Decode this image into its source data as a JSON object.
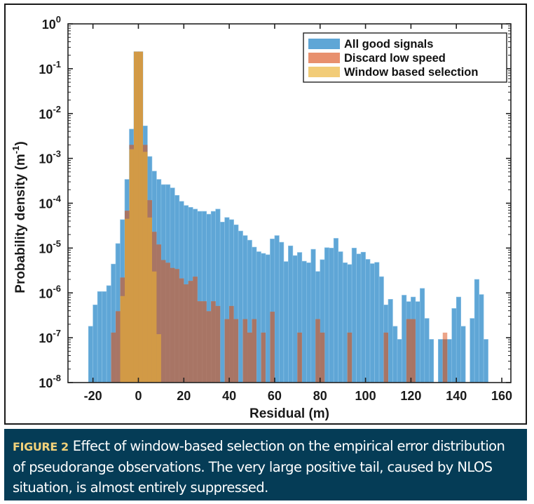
{
  "chart_data": {
    "type": "bar",
    "subtype": "overlaid-histogram",
    "title": "",
    "xlabel": "Residual (m)",
    "ylabel_main": "Probability density (m",
    "ylabel_sup": "-1",
    "ylabel_close": ")",
    "xlim": [
      -31,
      164
    ],
    "ylim": [
      1e-08,
      1
    ],
    "yscale": "log",
    "bin_width": 2,
    "x_ticks": [
      -20,
      0,
      20,
      40,
      60,
      80,
      100,
      120,
      140,
      160
    ],
    "x_tick_labels": [
      "-20",
      "0",
      "20",
      "40",
      "60",
      "80",
      "100",
      "120",
      "140",
      "160"
    ],
    "y_ticks_exp": [
      0,
      -1,
      -2,
      -3,
      -4,
      -5,
      -6,
      -7,
      -8
    ],
    "y_tick_base": "10",
    "y_tick_exp_labels": [
      "0",
      "-1",
      "-2",
      "-3",
      "-4",
      "-5",
      "-6",
      "-7",
      "-8"
    ],
    "grid": false,
    "legend_position": "top-right",
    "series": [
      {
        "name": "All good signals",
        "color": "#5fa6d6",
        "bins": [
          [
            -22,
            1.8e-07
          ],
          [
            -20,
            5.4e-07
          ],
          [
            -18,
            1.07e-06
          ],
          [
            -16,
            1.07e-06
          ],
          [
            -14,
            1.45e-06
          ],
          [
            -12,
            4.4e-06
          ],
          [
            -10,
            1.26e-05
          ],
          [
            -8,
            4.3e-05
          ],
          [
            -6,
            0.00034
          ],
          [
            -4,
            0.0045
          ],
          [
            -2,
            0.24
          ],
          [
            0,
            0.24
          ],
          [
            2,
            0.0053
          ],
          [
            4,
            0.0011
          ],
          [
            6,
            0.00052
          ],
          [
            8,
            0.00034
          ],
          [
            10,
            0.00026
          ],
          [
            12,
            0.00026
          ],
          [
            14,
            0.00022
          ],
          [
            16,
            0.00015
          ],
          [
            18,
            0.00011
          ],
          [
            20,
            8.9e-05
          ],
          [
            22,
            8.1e-05
          ],
          [
            24,
            7.4e-05
          ],
          [
            26,
            6.6e-05
          ],
          [
            28,
            6.6e-05
          ],
          [
            30,
            5.7e-05
          ],
          [
            32,
            6.6e-05
          ],
          [
            34,
            7.4e-05
          ],
          [
            36,
            3.8e-05
          ],
          [
            38,
            4.8e-05
          ],
          [
            40,
            4.3e-05
          ],
          [
            42,
            3.3e-05
          ],
          [
            44,
            2.4e-05
          ],
          [
            46,
            1.9e-05
          ],
          [
            48,
            1.5e-05
          ],
          [
            50,
            1.05e-05
          ],
          [
            52,
            8.3e-06
          ],
          [
            54,
            7.6e-06
          ],
          [
            56,
            7.1e-06
          ],
          [
            58,
            1.6e-05
          ],
          [
            60,
            1.9e-05
          ],
          [
            62,
            1.35e-05
          ],
          [
            64,
            5e-06
          ],
          [
            66,
            1.12e-05
          ],
          [
            68,
            6.8e-06
          ],
          [
            70,
            8e-06
          ],
          [
            72,
            5.1e-06
          ],
          [
            74,
            4.7e-06
          ],
          [
            76,
            9.4e-06
          ],
          [
            78,
            3e-06
          ],
          [
            80,
            5.5e-06
          ],
          [
            82,
            1.02e-05
          ],
          [
            84,
            1e-05
          ],
          [
            86,
            1.65e-05
          ],
          [
            88,
            8.3e-06
          ],
          [
            90,
            4.7e-06
          ],
          [
            92,
            4.3e-06
          ],
          [
            94,
            1e-05
          ],
          [
            96,
            7.4e-06
          ],
          [
            98,
            8.1e-06
          ],
          [
            100,
            5.6e-06
          ],
          [
            102,
            4.5e-06
          ],
          [
            104,
            4.8e-06
          ],
          [
            106,
            2.3e-06
          ],
          [
            108,
            5.4e-07
          ],
          [
            110,
            7.2e-07
          ],
          [
            112,
            1.8e-07
          ],
          [
            114,
            9.2e-08
          ],
          [
            116,
            8.9e-07
          ],
          [
            118,
            6.4e-07
          ],
          [
            120,
            8.1e-07
          ],
          [
            122,
            6.4e-07
          ],
          [
            124,
            1.26e-06
          ],
          [
            126,
            2.7e-07
          ],
          [
            128,
            9.2e-08
          ],
          [
            132,
            9.2e-08
          ],
          [
            134,
            9.2e-08
          ],
          [
            136,
            9.2e-08
          ],
          [
            138,
            4.5e-07
          ],
          [
            140,
            8.1e-07
          ],
          [
            142,
            1.8e-07
          ],
          [
            146,
            2.7e-07
          ],
          [
            148,
            2e-06
          ],
          [
            150,
            9.2e-07
          ],
          [
            152,
            9.2e-08
          ]
        ]
      },
      {
        "name": "Discard low speed",
        "color": "#e58a6a",
        "overlap_color": "#a87565",
        "bins": [
          [
            -12,
            1.3e-07
          ],
          [
            -10,
            3.9e-07
          ],
          [
            -8,
            2.2e-06
          ],
          [
            -6,
            6.8e-05
          ],
          [
            -4,
            0.002
          ],
          [
            -2,
            0.24
          ],
          [
            0,
            0.24
          ],
          [
            2,
            0.002
          ],
          [
            4,
            0.000117
          ],
          [
            6,
            2.3e-05
          ],
          [
            8,
            1.2e-05
          ],
          [
            10,
            5.4e-06
          ],
          [
            12,
            4.7e-06
          ],
          [
            14,
            3.6e-06
          ],
          [
            16,
            3.4e-06
          ],
          [
            18,
            2.1e-06
          ],
          [
            20,
            1.55e-06
          ],
          [
            22,
            1.85e-06
          ],
          [
            24,
            2.3e-06
          ],
          [
            26,
            6.5e-07
          ],
          [
            28,
            6.5e-07
          ],
          [
            30,
            3.9e-07
          ],
          [
            32,
            6.5e-07
          ],
          [
            34,
            5.1e-07
          ],
          [
            38,
            2.6e-07
          ],
          [
            40,
            5.1e-07
          ],
          [
            42,
            2.6e-07
          ],
          [
            46,
            2.6e-07
          ],
          [
            48,
            1.3e-07
          ],
          [
            50,
            2.6e-07
          ],
          [
            54,
            1.3e-07
          ],
          [
            58,
            3.8e-07
          ],
          [
            70,
            1.3e-07
          ],
          [
            78,
            2.6e-07
          ],
          [
            80,
            1.3e-07
          ],
          [
            92,
            1.3e-07
          ],
          [
            108,
            1.3e-07
          ],
          [
            118,
            2.6e-07
          ],
          [
            120,
            2.6e-07
          ],
          [
            134,
            1.3e-07
          ]
        ]
      },
      {
        "name": "Window based selection",
        "color": "#f2cc78",
        "overlap_color": "#d29a46",
        "bins": [
          [
            -8,
            8.5e-07
          ],
          [
            -6,
            4.5e-05
          ],
          [
            -4,
            0.0016
          ],
          [
            -2,
            0.24
          ],
          [
            0,
            0.24
          ],
          [
            2,
            0.0014
          ],
          [
            4,
            4.8e-05
          ],
          [
            6,
            3e-06
          ],
          [
            8,
            1.2e-07
          ]
        ]
      }
    ]
  },
  "caption": {
    "label": "FIGURE 2",
    "text": "Effect of window-based selection on the empirical error distribution of pseudorange observations. The very large positive tail, caused by NLOS situation, is almost entirely suppressed."
  }
}
